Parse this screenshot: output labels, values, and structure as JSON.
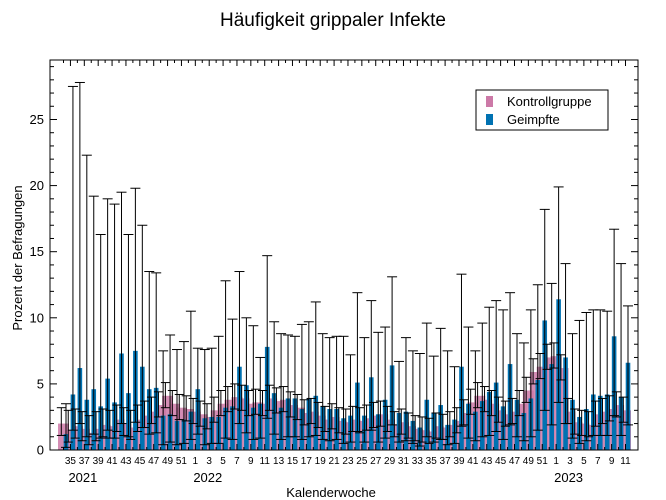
{
  "chart_data": {
    "type": "bar",
    "title": "Häufigkeit grippaler Infekte",
    "xlabel": "Kalenderwoche",
    "ylabel": "Prozent der Befragungen",
    "ylim": [
      0,
      29.5
    ],
    "yticks": [
      0,
      5,
      10,
      15,
      20,
      25
    ],
    "legend_position": "top-right",
    "colors": {
      "Kontrollgruppe": "#cc79a7",
      "Geimpfte": "#0072b2"
    },
    "categories": [
      34,
      35,
      36,
      37,
      38,
      39,
      40,
      41,
      42,
      43,
      44,
      45,
      46,
      47,
      48,
      49,
      50,
      51,
      52,
      1,
      2,
      3,
      4,
      5,
      6,
      7,
      8,
      9,
      10,
      11,
      12,
      13,
      14,
      15,
      16,
      17,
      18,
      19,
      20,
      21,
      22,
      23,
      24,
      25,
      26,
      27,
      28,
      29,
      30,
      31,
      32,
      33,
      34,
      35,
      36,
      37,
      38,
      39,
      40,
      41,
      42,
      43,
      44,
      45,
      46,
      47,
      48,
      49,
      50,
      51,
      52,
      1,
      2,
      3,
      4,
      5,
      6,
      7,
      8,
      9,
      10,
      11
    ],
    "week_tick_labels": [
      "35",
      "37",
      "39",
      "41",
      "43",
      "45",
      "47",
      "49",
      "51",
      "1",
      "3",
      "5",
      "7",
      "9",
      "11",
      "13",
      "15",
      "17",
      "19",
      "21",
      "23",
      "25",
      "27",
      "29",
      "31",
      "33",
      "35",
      "37",
      "39",
      "41",
      "43",
      "45",
      "47",
      "49",
      "51",
      "1",
      "3",
      "5",
      "7",
      "9",
      "11"
    ],
    "year_labels": [
      "2021",
      "2022",
      "2023"
    ],
    "series": [
      {
        "name": "Kontrollgruppe",
        "values": [
          2.0,
          1.5,
          1.8,
          1.6,
          1.3,
          1.6,
          1.9,
          1.8,
          2.3,
          2.0,
          1.7,
          2.3,
          2.6,
          2.9,
          3.4,
          4.1,
          3.5,
          3.2,
          3.1,
          2.9,
          2.7,
          2.5,
          3.0,
          3.5,
          3.8,
          4.0,
          3.9,
          3.5,
          3.6,
          3.5,
          3.9,
          3.7,
          3.8,
          3.4,
          3.2,
          2.8,
          2.9,
          2.6,
          2.3,
          2.5,
          2.2,
          2.1,
          2.3,
          2.2,
          2.4,
          2.6,
          2.7,
          2.3,
          1.9,
          2.1,
          1.8,
          1.6,
          1.5,
          1.4,
          1.8,
          1.7,
          1.9,
          2.2,
          2.8,
          3.6,
          4.1,
          3.8,
          3.5,
          3.0,
          2.7,
          2.9,
          3.5,
          4.5,
          5.9,
          6.3,
          7.0,
          7.1,
          6.2,
          2.9,
          2.1,
          2.0,
          1.9,
          2.7,
          2.9,
          3.1,
          3.4,
          3.0
        ],
        "err_high": [
          3.2,
          3.0,
          3.1,
          2.9,
          2.6,
          2.9,
          3.1,
          3.0,
          3.4,
          3.2,
          3.0,
          3.4,
          3.7,
          4.0,
          4.4,
          5.1,
          4.5,
          4.2,
          4.1,
          3.9,
          3.7,
          3.5,
          4.0,
          4.5,
          4.8,
          5.0,
          4.9,
          4.5,
          4.6,
          4.5,
          4.9,
          4.7,
          4.8,
          4.4,
          4.2,
          3.8,
          3.9,
          3.6,
          3.3,
          3.5,
          3.2,
          3.1,
          3.3,
          3.2,
          3.4,
          3.6,
          3.7,
          3.3,
          2.9,
          3.1,
          2.8,
          2.6,
          2.5,
          2.4,
          2.8,
          2.7,
          2.9,
          3.2,
          3.8,
          4.6,
          5.1,
          4.8,
          4.5,
          4.0,
          3.7,
          3.9,
          4.5,
          5.5,
          6.9,
          7.3,
          8.0,
          8.1,
          7.2,
          3.9,
          3.1,
          3.0,
          2.9,
          3.7,
          3.9,
          4.1,
          4.4,
          4.0
        ]
      },
      {
        "name": "Geimpfte",
        "values": [
          1.2,
          4.2,
          6.2,
          3.8,
          4.6,
          3.3,
          5.4,
          3.6,
          7.3,
          4.3,
          7.5,
          6.3,
          4.6,
          4.7,
          2.6,
          2.7,
          2.2,
          2.3,
          2.9,
          4.6,
          2.4,
          2.5,
          2.5,
          3.2,
          3.3,
          6.3,
          4.9,
          3.2,
          3.5,
          7.8,
          4.3,
          3.2,
          3.9,
          3.9,
          3.1,
          3.9,
          4.1,
          3.3,
          3.1,
          3.1,
          2.4,
          2.6,
          5.1,
          2.6,
          5.5,
          2.7,
          3.8,
          6.4,
          2.8,
          2.9,
          2.2,
          1.7,
          3.8,
          2.8,
          3.4,
          1.9,
          2.3,
          6.3,
          3.5,
          2.9,
          3.7,
          4.4,
          5.1,
          3.3,
          6.5,
          3.8,
          2.8,
          3.9,
          5.3,
          9.8,
          6.5,
          11.4,
          7.0,
          3.8,
          2.5,
          3.1,
          4.2,
          4.1,
          4.2,
          8.6,
          4.0,
          6.6
        ]
      }
    ],
    "err_high_geimpfte": [
      3.5,
      27.5,
      27.8,
      22.3,
      19.2,
      16.3,
      19.0,
      18.6,
      19.5,
      16.3,
      19.8,
      17.0,
      13.5,
      13.4,
      7.5,
      8.7,
      7.6,
      8.2,
      10.5,
      7.7,
      7.6,
      7.7,
      8.6,
      12.8,
      9.9,
      13.5,
      10.0,
      9.4,
      7.0,
      14.7,
      9.7,
      8.8,
      8.7,
      8.6,
      9.5,
      9.7,
      11.2,
      8.8,
      8.5,
      8.6,
      8.6,
      7.2,
      11.9,
      8.5,
      11.3,
      8.9,
      9.3,
      13.1,
      6.7,
      8.5,
      7.5,
      7.3,
      9.6,
      7.1,
      9.2,
      7.5,
      6.3,
      13.3,
      9.3,
      7.5,
      9.6,
      10.8,
      11.3,
      10.6,
      11.9,
      8.8,
      8.1,
      10.6,
      12.5,
      18.2,
      12.6,
      19.9,
      14.1,
      8.8,
      9.8,
      10.4,
      10.6,
      10.6,
      10.5,
      16.7,
      14.1,
      10.9
    ],
    "err_low_geimpfte": [
      0.2,
      1.5,
      2.0,
      1.0,
      1.2,
      0.9,
      1.5,
      0.9,
      2.0,
      1.0,
      2.1,
      1.7,
      1.2,
      1.3,
      0.4,
      0.6,
      0.4,
      0.5,
      0.8,
      1.2,
      0.4,
      0.5,
      0.5,
      0.9,
      0.8,
      2.0,
      1.3,
      0.8,
      0.9,
      2.4,
      1.2,
      0.8,
      1.0,
      1.0,
      0.8,
      1.0,
      1.1,
      0.8,
      0.7,
      0.8,
      0.5,
      0.6,
      1.4,
      0.6,
      1.5,
      0.6,
      0.9,
      1.9,
      0.6,
      0.7,
      0.5,
      0.3,
      1.0,
      0.6,
      0.8,
      0.4,
      0.5,
      1.8,
      0.9,
      0.7,
      1.0,
      1.1,
      1.4,
      0.8,
      1.9,
      1.0,
      0.7,
      1.0,
      1.5,
      3.0,
      1.9,
      3.6,
      2.0,
      0.9,
      0.5,
      0.7,
      1.1,
      1.1,
      1.1,
      2.6,
      1.1,
      1.9
    ]
  }
}
